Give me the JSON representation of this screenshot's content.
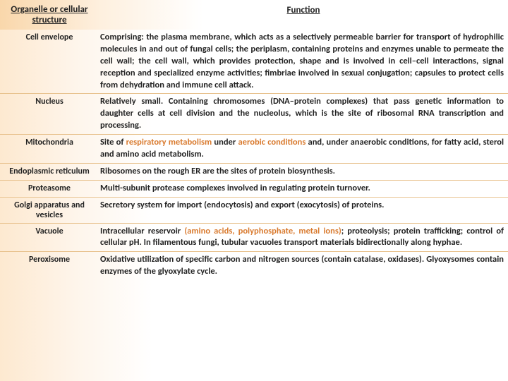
{
  "header": {
    "col1": "Organelle or cellular structure",
    "col2": "Function"
  },
  "rows": [
    {
      "organelle": "Cell envelope",
      "function": "Comprising: the plasma membrane, which acts as a selectively permeable barrier for transport of hydrophilic molecules in and out of fungal cells; the periplasm, containing proteins and enzymes unable to permeate the cell wall; the cell wall, which provides protection, shape and is involved in cell–cell interactions, signal reception and specialized enzyme activities; fimbriae involved in sexual conjugation; capsules to protect cells from dehydration and immune cell attack."
    },
    {
      "organelle": "Nucleus",
      "function": "Relatively small. Containing chromosomes (DNA–protein complexes) that pass genetic information to daughter cells at cell division and the nucleolus, which is the site of ribosomal RNA transcription and processing."
    },
    {
      "organelle": "Mitochondria",
      "function_pre": "Site of ",
      "function_hl1": "respiratory metabolism",
      "function_mid": " under ",
      "function_hl2": "aerobic conditions",
      "function_post": " and, under anaerobic conditions, for fatty acid, sterol and amino acid metabolism."
    },
    {
      "organelle": "Endoplasmic reticulum",
      "function": "Ribosomes on the rough ER are the sites of protein biosynthesis."
    },
    {
      "organelle": "Proteasome",
      "function": "Multi-subunit protease complexes involved in regulating protein turnover."
    },
    {
      "organelle": "Golgi apparatus and vesicles",
      "function": "Secretory system for import (endocytosis) and export (exocytosis) of proteins."
    },
    {
      "organelle": "Vacuole",
      "function_pre": "Intracellular reservoir ",
      "function_hl1": "(amino acids, polyphosphate, metal ions)",
      "function_post": "; proteolysis; protein trafficking; control of cellular pH. In filamentous fungi, tubular vacuoles transport materials bidirectionally along hyphae."
    },
    {
      "organelle": "Peroxisome",
      "function": "Oxidative utilization of specific carbon and nitrogen sources (contain catalase, oxidases). Glyoxysomes contain enzymes of the glyoxylate cycle."
    }
  ]
}
